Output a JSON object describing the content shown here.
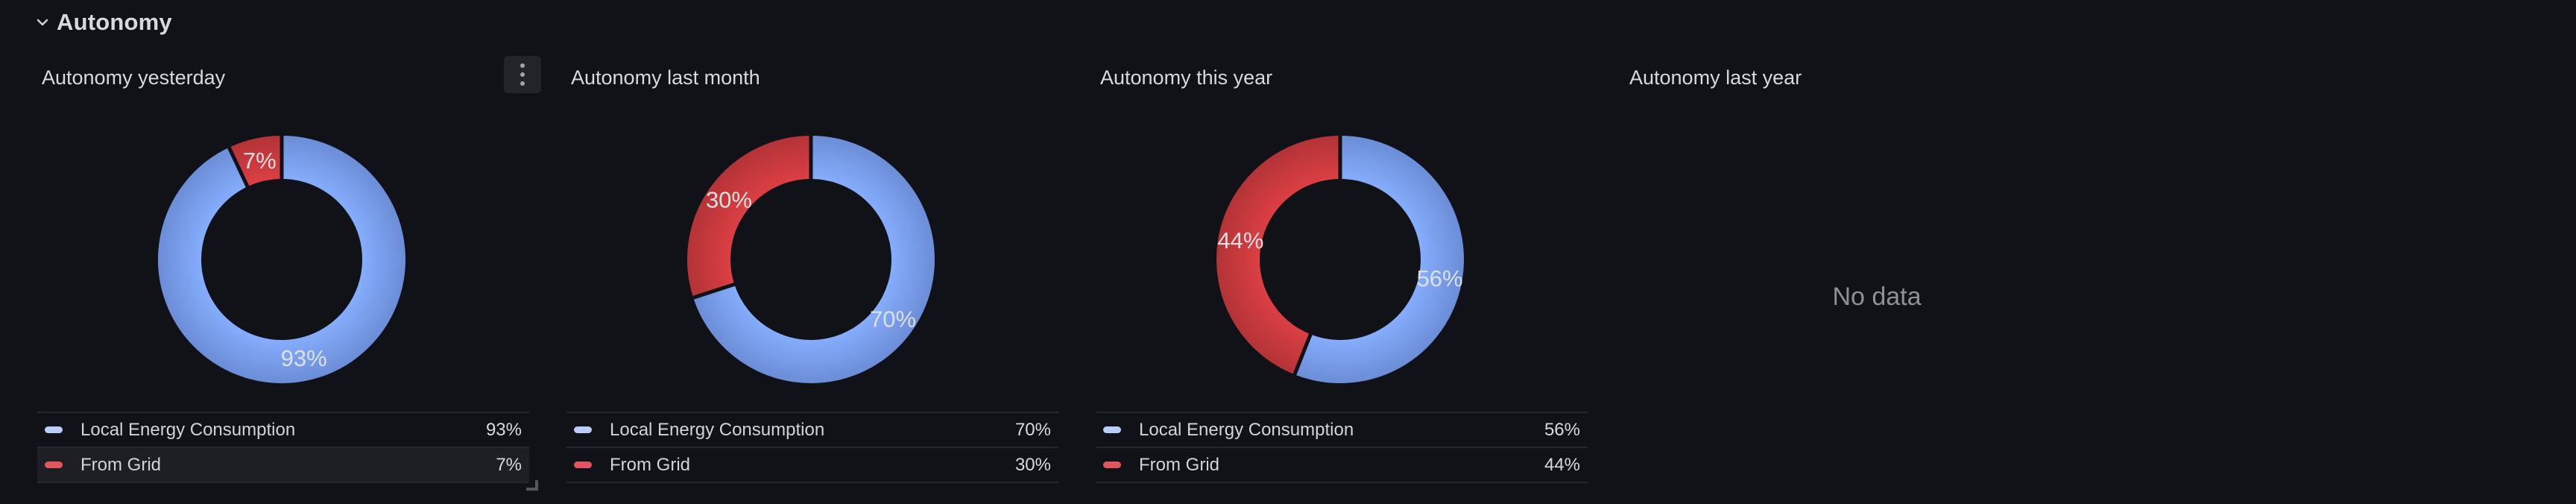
{
  "colors": {
    "page_bg": "#111218",
    "text_primary": "#D8D9DE",
    "text_secondary": "#D2D3D8",
    "no_data_text": "#8E9097",
    "legend_border": "#26282E",
    "legend_row_highlight_bg": "#1D1F25",
    "menu_button_bg": "#232429",
    "series_blue": "#7BA0F4",
    "series_red": "#CB3A3E",
    "swatch_blue": "#BACDF8",
    "swatch_red": "#DF565E"
  },
  "row_header": {
    "label": "Autonomy",
    "icon": "chevron-down-icon",
    "state": "expanded"
  },
  "panels": [
    {
      "title": "Autonomy yesterday",
      "chart_index": 0,
      "has_menu": true,
      "has_resize_handle": true,
      "menu_icon": "kebab-menu-icon",
      "legend": [
        {
          "label": "Local Energy Consumption",
          "value": "93%",
          "swatch_color": "#BACDF8",
          "highlighted": false
        },
        {
          "label": "From Grid",
          "value": "7%",
          "swatch_color": "#DF565E",
          "highlighted": true
        }
      ]
    },
    {
      "title": "Autonomy last month",
      "chart_index": 1,
      "legend": [
        {
          "label": "Local Energy Consumption",
          "value": "70%",
          "swatch_color": "#BACDF8",
          "highlighted": false
        },
        {
          "label": "From Grid",
          "value": "30%",
          "swatch_color": "#DF565E",
          "highlighted": false
        }
      ]
    },
    {
      "title": "Autonomy this year",
      "chart_index": 2,
      "legend": [
        {
          "label": "Local Energy Consumption",
          "value": "56%",
          "swatch_color": "#BACDF8",
          "highlighted": false
        },
        {
          "label": "From Grid",
          "value": "44%",
          "swatch_color": "#DF565E",
          "highlighted": false
        }
      ]
    },
    {
      "title": "Autonomy last year",
      "no_data_label": "No data"
    }
  ],
  "chart_data": [
    {
      "type": "pie",
      "subtype": "donut",
      "title": "Autonomy yesterday",
      "unit": "%",
      "start_angle": "top",
      "direction": "clockwise",
      "legend_position": "bottom",
      "series": [
        {
          "name": "Local Energy Consumption",
          "value": 93,
          "color": "#7BA0F4"
        },
        {
          "name": "From Grid",
          "value": 7,
          "color": "#CB3A3E"
        }
      ]
    },
    {
      "type": "pie",
      "subtype": "donut",
      "title": "Autonomy last month",
      "unit": "%",
      "start_angle": "top",
      "direction": "clockwise",
      "legend_position": "bottom",
      "series": [
        {
          "name": "Local Energy Consumption",
          "value": 70,
          "color": "#7BA0F4"
        },
        {
          "name": "From Grid",
          "value": 30,
          "color": "#CB3A3E"
        }
      ]
    },
    {
      "type": "pie",
      "subtype": "donut",
      "title": "Autonomy this year",
      "unit": "%",
      "start_angle": "top",
      "direction": "clockwise",
      "legend_position": "bottom",
      "series": [
        {
          "name": "Local Energy Consumption",
          "value": 56,
          "color": "#7BA0F4"
        },
        {
          "name": "From Grid",
          "value": 44,
          "color": "#CB3A3E"
        }
      ]
    }
  ]
}
